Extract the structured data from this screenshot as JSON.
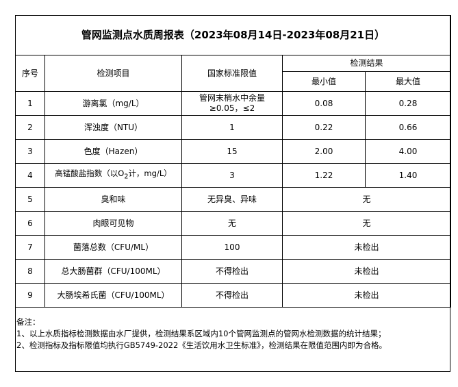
{
  "title": "管网监测点水质周报表（2023年08月14日-2023年08月21日）",
  "headers": {
    "index": "序号",
    "item": "检测项目",
    "standard": "国家标准限值",
    "results": "检测结果",
    "min": "最小值",
    "max": "最大值"
  },
  "rows": [
    {
      "index": "1",
      "item": "游离氯（mg/L）",
      "standard": "管网末梢水中余量≥0.05，≤2",
      "min": "0.08",
      "max": "0.28"
    },
    {
      "index": "2",
      "item": "浑浊度（NTU）",
      "standard": "1",
      "min": "0.22",
      "max": "0.66"
    },
    {
      "index": "3",
      "item": "色度（Hazen）",
      "standard": "15",
      "min": "2.00",
      "max": "4.00"
    },
    {
      "index": "4",
      "item_pre": "高锰酸盐指数（以O",
      "item_sub": "2",
      "item_post": "计，mg/L）",
      "standard": "3",
      "min": "1.22",
      "max": "1.40"
    },
    {
      "index": "5",
      "item": "臭和味",
      "standard": "无异臭、异味",
      "result": "无"
    },
    {
      "index": "6",
      "item": "肉眼可见物",
      "standard": "无",
      "result": "无"
    },
    {
      "index": "7",
      "item": "菌落总数（CFU/ML）",
      "standard": "100",
      "result": "未检出"
    },
    {
      "index": "8",
      "item": "总大肠菌群（CFU/100ML）",
      "standard": "不得检出",
      "result": "未检出"
    },
    {
      "index": "9",
      "item": "大肠埃希氏菌（CFU/100ML）",
      "standard": "不得检出",
      "result": "未检出"
    }
  ],
  "notes": [
    "备注：",
    "1、以上水质指标检测数据由水厂提供，检测结果系区域内10个管网监测点的管网水检测数据的统计结果；",
    "2、检测指标及指标限值均执行GB5749-2022《生活饮用水卫生标准》，检测结果在限值范围内即为合格。"
  ]
}
